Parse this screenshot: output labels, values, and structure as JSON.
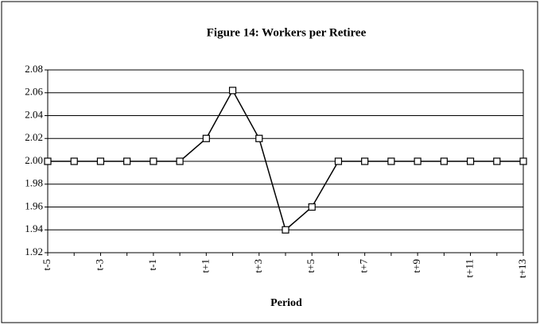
{
  "chart_data": {
    "type": "line",
    "title": "Figure 14: Workers per Retiree",
    "x_label": "Period",
    "categories": [
      "t-5",
      null,
      "t-3",
      null,
      "t-1",
      null,
      "t+1",
      null,
      "t+3",
      null,
      "t+5",
      null,
      "t+7",
      null,
      "t+9",
      null,
      "t+11",
      null,
      "t+13"
    ],
    "series": [
      {
        "name": "Workers per Retiree",
        "color": "#000000",
        "values": [
          2.0,
          2.0,
          2.0,
          2.0,
          2.0,
          2.0,
          2.02,
          2.062,
          2.02,
          1.94,
          1.96,
          2.0,
          2.0,
          2.0,
          2.0,
          2.0,
          2.0,
          2.0,
          2.0
        ]
      }
    ],
    "ylim": [
      1.92,
      2.08
    ],
    "yticks": [
      1.92,
      1.94,
      1.96,
      1.98,
      {
        "value": 2.0,
        "label": "2.00"
      },
      2.02,
      2.04,
      2.06,
      2.08
    ],
    "grid": true
  }
}
